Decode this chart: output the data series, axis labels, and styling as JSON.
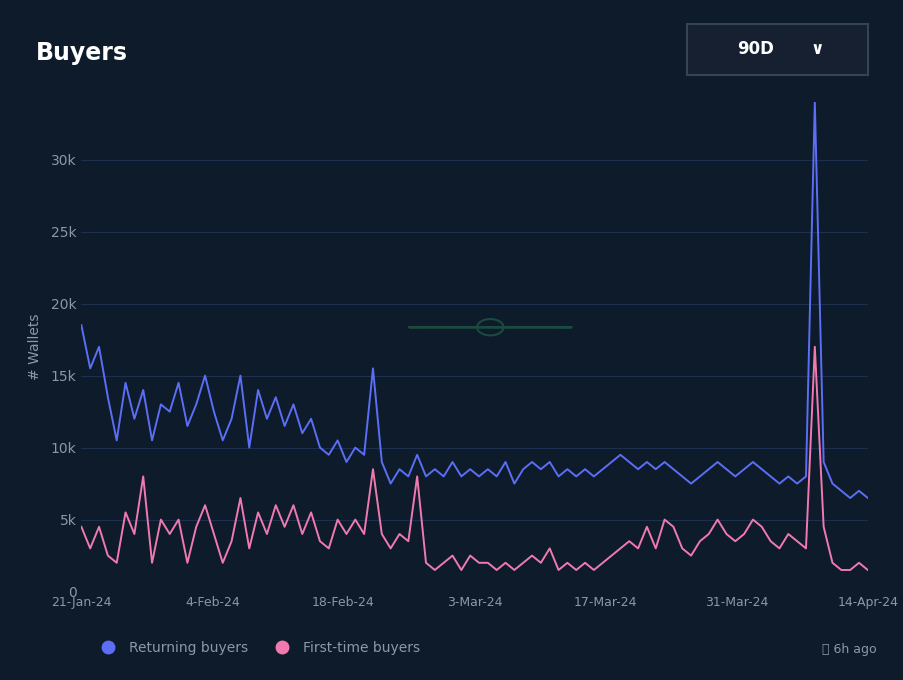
{
  "title": "Buyers",
  "ylabel": "# Wallets",
  "background_color": "#0d1b2a",
  "plot_bg_color": "#0d1b2a",
  "grid_color": "#1e3050",
  "title_color": "#ffffff",
  "axis_color": "#8899aa",
  "yticks": [
    0,
    5000,
    10000,
    15000,
    20000,
    25000,
    30000
  ],
  "ytick_labels": [
    "0",
    "5k",
    "10k",
    "15k",
    "20k",
    "25k",
    "30k"
  ],
  "ylim": [
    0,
    34000
  ],
  "xtick_labels": [
    "21-Jan-24",
    "4-Feb-24",
    "18-Feb-24",
    "3-Mar-24",
    "17-Mar-24",
    "31-Mar-24",
    "14-Apr-24"
  ],
  "returning_color": "#5b6ef5",
  "firsttime_color": "#f07ab0",
  "legend_returning": "Returning buyers",
  "legend_firsttime": "First-time buyers",
  "badge_text": "90D",
  "badge_bg": "#162030",
  "badge_border": "#334455",
  "watermark_color": "#1a4a40",
  "note_text": "6h ago",
  "returning_buyers": [
    18500,
    15500,
    17000,
    13500,
    10500,
    14500,
    12000,
    14000,
    10500,
    13000,
    12500,
    14500,
    11500,
    13000,
    15000,
    12500,
    10500,
    12000,
    15000,
    10000,
    14000,
    12000,
    13500,
    11500,
    13000,
    11000,
    12000,
    10000,
    9500,
    10500,
    9000,
    10000,
    9500,
    15500,
    9000,
    7500,
    8500,
    8000,
    9500,
    8000,
    8500,
    8000,
    9000,
    8000,
    8500,
    8000,
    8500,
    8000,
    9000,
    7500,
    8500,
    9000,
    8500,
    9000,
    8000,
    8500,
    8000,
    8500,
    8000,
    8500,
    9000,
    9500,
    9000,
    8500,
    9000,
    8500,
    9000,
    8500,
    8000,
    7500,
    8000,
    8500,
    9000,
    8500,
    8000,
    8500,
    9000,
    8500,
    8000,
    7500,
    8000,
    7500,
    8000,
    34000,
    9000,
    7500,
    7000,
    6500,
    7000,
    6500
  ],
  "firsttime_buyers": [
    4500,
    3000,
    4500,
    2500,
    2000,
    5500,
    4000,
    8000,
    2000,
    5000,
    4000,
    5000,
    2000,
    4500,
    6000,
    4000,
    2000,
    3500,
    6500,
    3000,
    5500,
    4000,
    6000,
    4500,
    6000,
    4000,
    5500,
    3500,
    3000,
    5000,
    4000,
    5000,
    4000,
    8500,
    4000,
    3000,
    4000,
    3500,
    8000,
    2000,
    1500,
    2000,
    2500,
    1500,
    2500,
    2000,
    2000,
    1500,
    2000,
    1500,
    2000,
    2500,
    2000,
    3000,
    1500,
    2000,
    1500,
    2000,
    1500,
    2000,
    2500,
    3000,
    3500,
    3000,
    4500,
    3000,
    5000,
    4500,
    3000,
    2500,
    3500,
    4000,
    5000,
    4000,
    3500,
    4000,
    5000,
    4500,
    3500,
    3000,
    4000,
    3500,
    3000,
    17000,
    4500,
    2000,
    1500,
    1500,
    2000,
    1500
  ]
}
